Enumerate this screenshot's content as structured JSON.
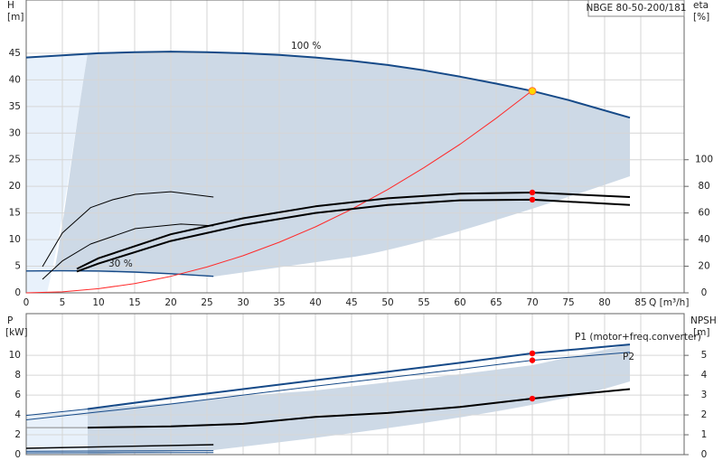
{
  "chart_data": [
    {
      "type": "line",
      "title": "NBGE 80-50-200/181",
      "xlabel": "Q [m³/h]",
      "ylabel": "H",
      "yunit": "[m]",
      "y2label": "eta",
      "y2unit": "[%]",
      "xlim": [
        0,
        91
      ],
      "xticks": [
        0,
        5,
        10,
        15,
        20,
        25,
        30,
        35,
        40,
        45,
        50,
        55,
        60,
        65,
        70,
        75,
        80,
        85
      ],
      "ylim": [
        0,
        55
      ],
      "yticks": [
        0,
        5,
        10,
        15,
        20,
        25,
        30,
        35,
        40,
        45
      ],
      "y2lim": [
        0,
        220
      ],
      "y2ticks": [
        0,
        20,
        40,
        60,
        80,
        100
      ],
      "grid": true,
      "series": [
        {
          "name": "100 %",
          "color": "#164a88",
          "style": "thick",
          "x": [
            0,
            5,
            10,
            15,
            20,
            25,
            30,
            35,
            40,
            45,
            50,
            55,
            60,
            65,
            70,
            75,
            83.5
          ],
          "values": [
            44.2,
            44.6,
            45,
            45.2,
            45.3,
            45.2,
            45,
            44.7,
            44.2,
            43.6,
            42.8,
            41.8,
            40.6,
            39.3,
            37.9,
            36.2,
            32.9
          ]
        },
        {
          "name": "30 %",
          "color": "#164a88",
          "style": "medium",
          "x": [
            0,
            5,
            10,
            15,
            20,
            25.9
          ],
          "values": [
            4.1,
            4.15,
            4.1,
            3.9,
            3.6,
            3.1
          ]
        },
        {
          "color": "#ff2a2a",
          "style": "thin",
          "x": [
            0,
            5,
            10,
            15,
            20,
            25,
            30,
            35,
            40,
            45,
            50,
            55,
            60,
            65,
            70
          ],
          "values": [
            0,
            0.19,
            0.78,
            1.74,
            3.1,
            4.85,
            6.98,
            9.5,
            12.4,
            15.7,
            19.4,
            23.5,
            27.9,
            32.8,
            38
          ]
        },
        {
          "color": "#000000",
          "style": "thick",
          "axis": "y2",
          "x": [
            7,
            10,
            20,
            30,
            40,
            50,
            60,
            70,
            83.5
          ],
          "values": [
            18,
            26,
            44,
            56,
            65,
            71,
            74.5,
            75.4,
            72
          ]
        },
        {
          "color": "#000000",
          "style": "thick",
          "axis": "y2",
          "x": [
            7,
            10,
            20,
            30,
            40,
            50,
            60,
            70,
            83.5
          ],
          "values": [
            16,
            22,
            39,
            51,
            60,
            66,
            69.5,
            70,
            66
          ]
        },
        {
          "color": "#000000",
          "style": "thin",
          "axis": "y2",
          "x": [
            2.25,
            5,
            8.9,
            12,
            15.1,
            20,
            25.9
          ],
          "values": [
            19.7,
            45,
            64,
            70,
            74,
            76,
            72
          ]
        },
        {
          "color": "#000000",
          "style": "thin",
          "axis": "y2",
          "x": [
            2.25,
            5,
            8.9,
            15.1,
            21.4,
            25.9
          ],
          "values": [
            10.2,
            24,
            36.7,
            48.3,
            51.7,
            50.3
          ]
        },
        {
          "color": "#ff0000",
          "style": "dot",
          "axis": "y2",
          "x": [
            70,
            70
          ],
          "values": [
            75.4,
            70
          ]
        },
        {
          "color": "#ffd700",
          "style": "point",
          "x": [
            70
          ],
          "values": [
            37.9
          ]
        }
      ]
    },
    {
      "type": "line",
      "ylabel": "P",
      "yunit": "[kW]",
      "y2label": "NPSH",
      "y2unit": "[m]",
      "xlim": [
        0,
        91
      ],
      "xticks": [
        0,
        5,
        10,
        15,
        20,
        25,
        30,
        35,
        40,
        45,
        50,
        55,
        60,
        65,
        70,
        75,
        80,
        85
      ],
      "ylim": [
        0,
        14.2
      ],
      "yticks": [
        0,
        2,
        4,
        6,
        8,
        10
      ],
      "y2lim": [
        0,
        7.1
      ],
      "y2ticks": [
        0,
        1,
        2,
        3,
        4,
        5
      ],
      "grid": true,
      "series": [
        {
          "name": "P1 (motor+freq.converter)",
          "color": "#164a88",
          "style": "thick",
          "x": [
            8.5,
            20,
            30,
            40,
            50,
            60,
            70,
            83.5
          ],
          "values": [
            4.6,
            5.7,
            6.6,
            7.5,
            8.35,
            9.25,
            10.2,
            11.1
          ]
        },
        {
          "name": "P2",
          "color": "#164a88",
          "style": "thin",
          "x": [
            0,
            10,
            20,
            30,
            40,
            50,
            60,
            70,
            83.5
          ],
          "values": [
            3.5,
            4.3,
            5.1,
            6,
            6.9,
            7.75,
            8.6,
            9.5,
            10.3
          ]
        },
        {
          "color": "#164a88",
          "style": "thin",
          "x": [
            0,
            8.5
          ],
          "values": [
            3.95,
            4.6
          ]
        },
        {
          "color": "#000000",
          "style": "thick",
          "axis": "y2",
          "x": [
            8.5,
            20,
            30,
            40,
            50,
            60,
            70,
            83.5
          ],
          "values": [
            1.36,
            1.42,
            1.55,
            1.9,
            2.1,
            2.4,
            2.82,
            3.3
          ]
        },
        {
          "color": "#888888",
          "style": "thin",
          "axis": "y2",
          "x": [
            0,
            8.5
          ],
          "values": [
            1.36,
            1.36
          ]
        },
        {
          "color": "#000000",
          "style": "medium",
          "axis": "y2",
          "x": [
            0,
            25.9
          ],
          "values": [
            0.32,
            0.5
          ]
        },
        {
          "color": "#164a88",
          "style": "thin",
          "x": [
            0,
            25.9
          ],
          "values": [
            0.35,
            0.4
          ]
        },
        {
          "color": "#164a88",
          "style": "thin",
          "x": [
            0,
            25.9
          ],
          "values": [
            0.18,
            0.2
          ]
        },
        {
          "color": "#ff0000",
          "style": "dot",
          "x": [
            70,
            70
          ],
          "values": [
            10.2,
            9.5
          ]
        },
        {
          "color": "#ff0000",
          "style": "dot",
          "axis": "y2",
          "x": [
            70
          ],
          "values": [
            2.82
          ]
        }
      ]
    }
  ]
}
